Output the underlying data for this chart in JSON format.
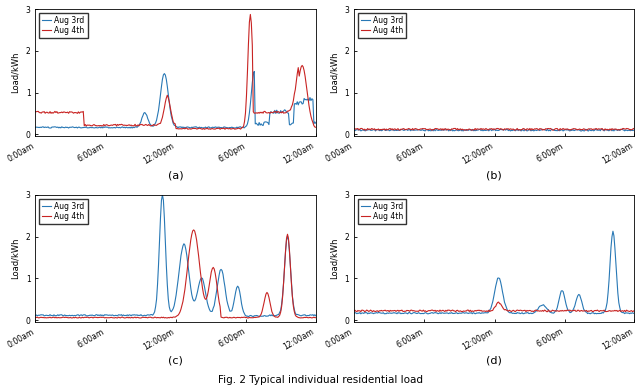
{
  "title": "Fig. 2 Typical individual residential load",
  "subplot_labels": [
    "(a)",
    "(b)",
    "(c)",
    "(d)"
  ],
  "ylabel": "Load/kWh",
  "xtick_labels": [
    "0:00am",
    "6:00am",
    "12:00pm",
    "6:00pm",
    "12:00am"
  ],
  "xtick_positions": [
    0,
    72,
    144,
    216,
    287
  ],
  "yticks": [
    0,
    1,
    2,
    3
  ],
  "ylim": [
    -0.05,
    3.0
  ],
  "n_points": 288,
  "color_aug3": "#2878b5",
  "color_aug4": "#c82423",
  "legend_labels": [
    "Aug 3rd",
    "Aug 4th"
  ],
  "line_width": 0.8
}
